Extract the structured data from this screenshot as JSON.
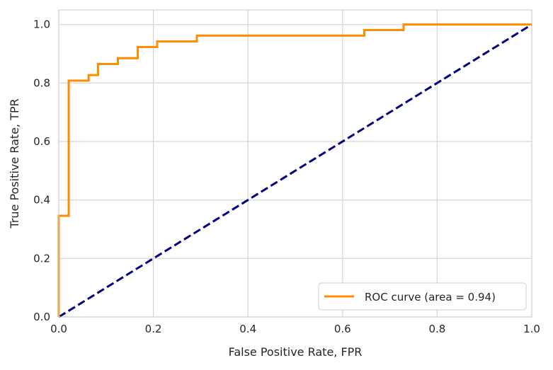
{
  "chart_data": {
    "type": "line",
    "xlabel": "False Positive Rate, FPR",
    "ylabel": "True Positive Rate, TPR",
    "xlim": [
      0.0,
      1.0
    ],
    "ylim": [
      0.0,
      1.05
    ],
    "x_ticks": [
      "0.0",
      "0.2",
      "0.4",
      "0.6",
      "0.8",
      "1.0"
    ],
    "y_ticks": [
      "0.0",
      "0.2",
      "0.4",
      "0.6",
      "0.8",
      "1.0"
    ],
    "grid": true,
    "legend_placement": "lower-right",
    "series": [
      {
        "name": "ROC curve (area = 0.94)",
        "color": "#ff8c00",
        "style": "solid",
        "x": [
          0.0,
          0.0,
          0.021,
          0.021,
          0.063,
          0.063,
          0.083,
          0.083,
          0.125,
          0.125,
          0.167,
          0.167,
          0.208,
          0.208,
          0.292,
          0.292,
          0.646,
          0.646,
          0.729,
          0.729,
          1.0
        ],
        "y": [
          0.0,
          0.346,
          0.346,
          0.808,
          0.808,
          0.827,
          0.827,
          0.865,
          0.865,
          0.885,
          0.885,
          0.923,
          0.923,
          0.942,
          0.942,
          0.962,
          0.962,
          0.981,
          0.981,
          1.0,
          1.0
        ]
      },
      {
        "color": "#000080",
        "style": "dashed",
        "x": [
          0.0,
          1.0
        ],
        "y": [
          0.0,
          1.0
        ]
      }
    ]
  }
}
